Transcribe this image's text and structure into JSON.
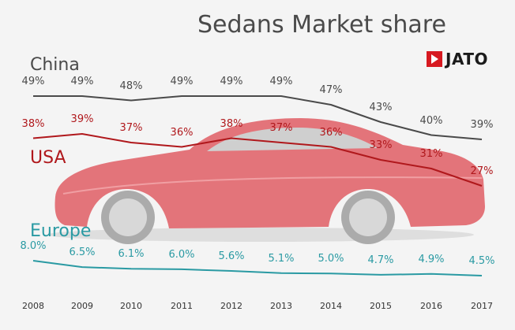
{
  "chart_data": {
    "type": "line",
    "title": "Sedans Market share",
    "logo_text": "JATO",
    "x": [
      "2008",
      "2009",
      "2010",
      "2011",
      "2012",
      "2013",
      "2014",
      "2015",
      "2016",
      "2017"
    ],
    "series": [
      {
        "name": "China",
        "color": "#4a4a4a",
        "values": [
          49,
          49,
          48,
          49,
          49,
          49,
          47,
          43,
          40,
          39
        ],
        "labels": [
          "49%",
          "49%",
          "48%",
          "49%",
          "49%",
          "49%",
          "47%",
          "43%",
          "40%",
          "39%"
        ]
      },
      {
        "name": "USA",
        "color": "#b0181c",
        "values": [
          38,
          39,
          37,
          36,
          38,
          37,
          36,
          33,
          31,
          27
        ],
        "labels": [
          "38%",
          "39%",
          "37%",
          "36%",
          "38%",
          "37%",
          "36%",
          "33%",
          "31%",
          "27%"
        ]
      },
      {
        "name": "Europe",
        "color": "#2a9aa3",
        "values": [
          8.0,
          6.5,
          6.1,
          6.0,
          5.6,
          5.1,
          5.0,
          4.7,
          4.9,
          4.5
        ],
        "labels": [
          "8.0%",
          "6.5%",
          "6.1%",
          "6.0%",
          "5.6%",
          "5.1%",
          "5.0%",
          "4.7%",
          "4.9%",
          "4.5%"
        ]
      }
    ],
    "grid": false,
    "legend": "none"
  },
  "background": {
    "image": "red-sedan-car"
  }
}
